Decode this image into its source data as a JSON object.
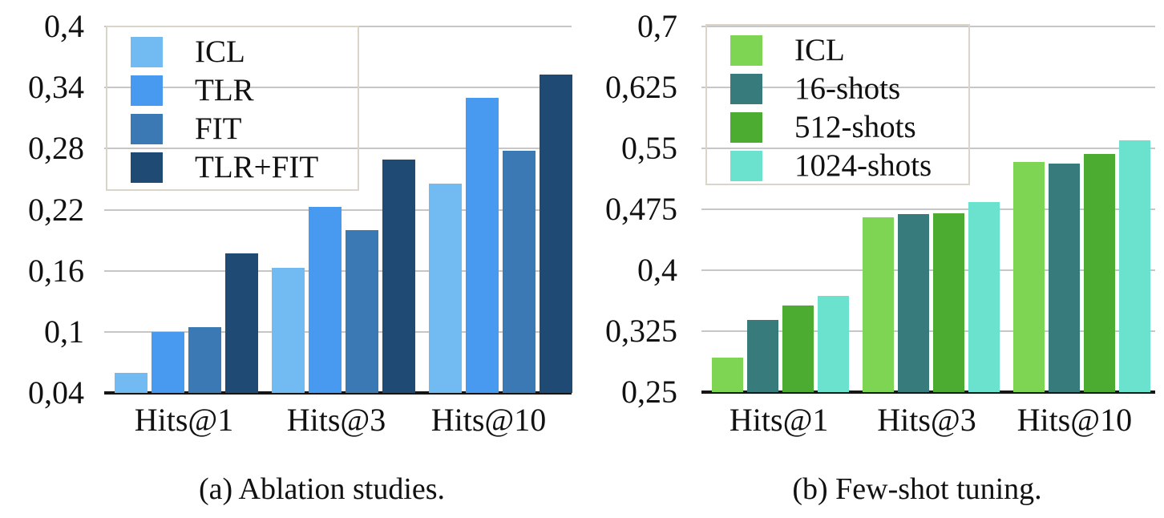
{
  "chart_data": [
    {
      "id": "ablation-studies",
      "type": "bar",
      "caption": "(a) Ablation studies.",
      "categories": [
        "Hits@1",
        "Hits@3",
        "Hits@10"
      ],
      "series": [
        {
          "name": "ICL",
          "color": "#72BAF2",
          "values": [
            0.06,
            0.163,
            0.246
          ]
        },
        {
          "name": "TLR",
          "color": "#479AF0",
          "values": [
            0.1,
            0.223,
            0.33
          ]
        },
        {
          "name": "FIT",
          "color": "#3A79B4",
          "values": [
            0.105,
            0.2,
            0.278
          ]
        },
        {
          "name": "TLR+FIT",
          "color": "#1F4A74",
          "values": [
            0.177,
            0.269,
            0.353
          ]
        }
      ],
      "ylim": [
        0.04,
        0.4
      ],
      "ytick_labels": [
        "0,4",
        "0,34",
        "0,28",
        "0,22",
        "0,16",
        "0,1",
        "0,04"
      ],
      "grid": true,
      "legend_position": "upper-left",
      "xlabel": "",
      "ylabel": ""
    },
    {
      "id": "few-shot-tuning",
      "type": "bar",
      "caption": "(b) Few-shot tuning.",
      "categories": [
        "Hits@1",
        "Hits@3",
        "Hits@10"
      ],
      "series": [
        {
          "name": "ICL",
          "color": "#7ED453",
          "values": [
            0.292,
            0.465,
            0.533
          ]
        },
        {
          "name": "16-shots",
          "color": "#377B7C",
          "values": [
            0.339,
            0.469,
            0.531
          ]
        },
        {
          "name": "512-shots",
          "color": "#4BAC31",
          "values": [
            0.357,
            0.47,
            0.543
          ]
        },
        {
          "name": "1024-shots",
          "color": "#6BE2CE",
          "values": [
            0.368,
            0.484,
            0.56
          ]
        }
      ],
      "ylim": [
        0.25,
        0.7
      ],
      "ytick_labels": [
        "0,7",
        "0,625",
        "0,55",
        "0,475",
        "0,4",
        "0,325",
        "0,25"
      ],
      "grid": true,
      "legend_position": "upper-left",
      "xlabel": "",
      "ylabel": ""
    }
  ]
}
